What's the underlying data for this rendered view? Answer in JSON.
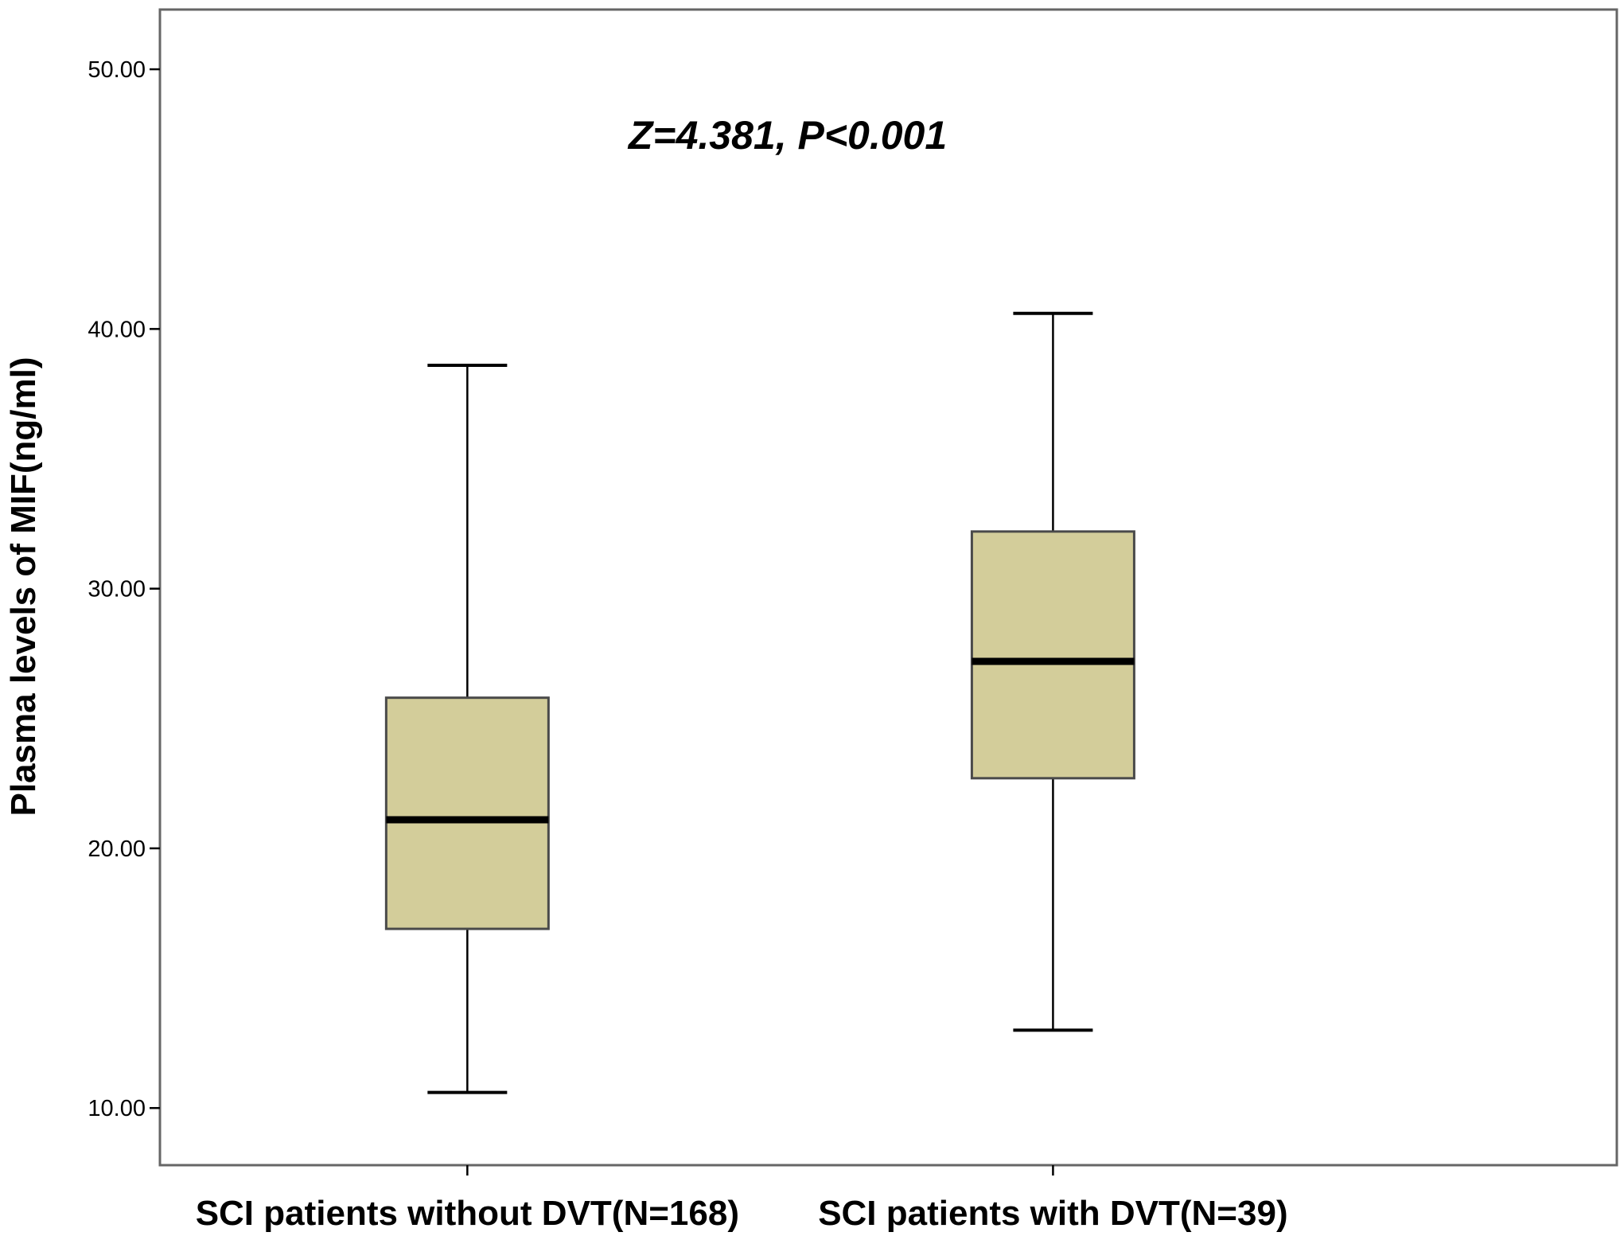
{
  "chart_data": {
    "type": "boxplot",
    "title": "",
    "xlabel": "",
    "ylabel": "Plasma levels of MIF(ng/ml)",
    "ylim": [
      7.8,
      52.3
    ],
    "y_ticks": [
      "10.00",
      "20.00",
      "30.00",
      "40.00",
      "50.00"
    ],
    "y_tick_values": [
      10,
      20,
      30,
      40,
      50
    ],
    "categories": [
      "SCI patients without DVT(N=168)",
      "SCI patients with DVT(N=39)"
    ],
    "boxes": [
      {
        "category": "SCI patients without DVT(N=168)",
        "whisker_low": 10.6,
        "q1": 16.9,
        "median": 21.1,
        "q3": 25.8,
        "whisker_high": 38.6
      },
      {
        "category": "SCI patients with DVT(N=39)",
        "whisker_low": 13.0,
        "q1": 22.7,
        "median": 27.2,
        "q3": 32.2,
        "whisker_high": 40.6
      }
    ],
    "annotation": "Z=4.381, P<0.001",
    "grid": false,
    "legend": "none",
    "colors": {
      "box_fill": "#d3cd9a",
      "box_stroke": "#4a4a4a",
      "whisker": "#000000",
      "median": "#000000",
      "frame": "#666666"
    }
  }
}
